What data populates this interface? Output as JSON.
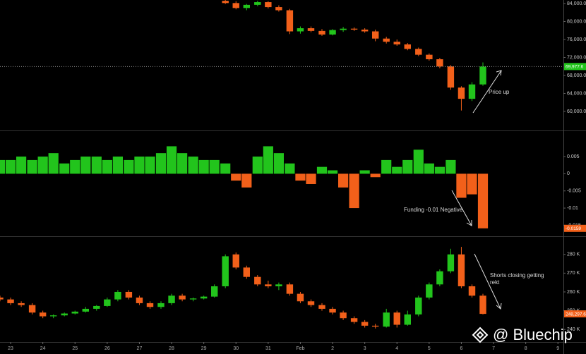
{
  "watermark": "@ Bluechip",
  "chart_data": [
    {
      "type": "candlestick",
      "annotation": "Price up",
      "up_color": "#22c41c",
      "down_color": "#f2601a",
      "last_value_line": true,
      "xlim": [
        -0.33,
        17.17
      ],
      "ylim": [
        55760,
        84780
      ],
      "yticks": [
        {
          "value": 84000,
          "label": "84,000.0"
        },
        {
          "value": 80000,
          "label": "80,000.0"
        },
        {
          "value": 76000,
          "label": "76,000.0"
        },
        {
          "value": 72000,
          "label": "72,000.0"
        },
        {
          "value": 68000,
          "label": "68,000.0"
        },
        {
          "value": 64000,
          "label": "64,000.0"
        },
        {
          "value": 60000,
          "label": "60,000.0"
        }
      ],
      "last_value": {
        "value": 69977.6,
        "label": "69,977.6"
      },
      "x": [
        6.67,
        7,
        7.33,
        7.67,
        8,
        8.33,
        8.67,
        9,
        9.33,
        9.67,
        10,
        10.33,
        10.67,
        11,
        11.33,
        11.67,
        12,
        12.33,
        12.67,
        13,
        13.33,
        13.67,
        14,
        14.33,
        14.67
      ],
      "open": [
        84600,
        84100,
        83000,
        83700,
        84300,
        83200,
        82500,
        77800,
        78500,
        77900,
        77100,
        78100,
        78400,
        78200,
        77800,
        76200,
        75500,
        74900,
        73900,
        72600,
        71600,
        70000,
        65300,
        62800,
        66000
      ],
      "high": [
        85000,
        84500,
        83900,
        84600,
        84500,
        83600,
        82800,
        78900,
        78900,
        78300,
        78300,
        78800,
        78700,
        78500,
        78200,
        76600,
        76000,
        75200,
        74200,
        72900,
        71900,
        70300,
        65600,
        66500,
        70900
      ],
      "low": [
        83900,
        82700,
        82500,
        83400,
        82900,
        82200,
        77200,
        77300,
        77600,
        76800,
        76900,
        77700,
        77900,
        77500,
        75600,
        75100,
        74600,
        73600,
        72300,
        71300,
        69600,
        64800,
        60200,
        62300,
        65700
      ],
      "close": [
        84100,
        83000,
        83700,
        84300,
        83200,
        82500,
        77800,
        78500,
        77900,
        77100,
        78100,
        78400,
        78200,
        77800,
        76200,
        75500,
        74900,
        73900,
        72600,
        71600,
        70000,
        65300,
        62800,
        66000,
        69977.6
      ]
    },
    {
      "type": "bar",
      "annotation": "Funding -0.01 Negative",
      "up_color": "#22c41c",
      "down_color": "#f2601a",
      "xlim": [
        -0.33,
        17.17
      ],
      "ylim": [
        -0.0182,
        0.0124
      ],
      "yticks": [
        0.005,
        0,
        -0.005,
        -0.01,
        -0.015
      ],
      "last_value": {
        "value": -0.0159,
        "label": "-0.0159"
      },
      "x": [
        -0.33,
        0,
        0.33,
        0.67,
        1,
        1.33,
        1.67,
        2,
        2.33,
        2.67,
        3,
        3.33,
        3.67,
        4,
        4.33,
        4.67,
        5,
        5.33,
        5.67,
        6,
        6.33,
        6.67,
        7,
        7.33,
        7.67,
        8,
        8.33,
        8.67,
        9,
        9.33,
        9.67,
        10,
        10.33,
        10.67,
        11,
        11.33,
        11.67,
        12,
        12.33,
        12.67,
        13,
        13.33,
        13.67,
        14,
        14.33,
        14.67
      ],
      "values": [
        0.004,
        0.004,
        0.005,
        0.004,
        0.005,
        0.006,
        0.003,
        0.004,
        0.005,
        0.005,
        0.004,
        0.005,
        0.004,
        0.005,
        0.005,
        0.006,
        0.008,
        0.006,
        0.005,
        0.004,
        0.004,
        0.003,
        -0.002,
        -0.004,
        0.005,
        0.008,
        0.006,
        0.003,
        -0.002,
        -0.003,
        0.002,
        0.001,
        -0.004,
        -0.01,
        0.001,
        -0.001,
        0.004,
        0.002,
        0.004,
        0.007,
        0.003,
        0.002,
        0.004,
        -0.007,
        -0.006,
        -0.0159
      ]
    },
    {
      "type": "candlestick",
      "annotation": "Shorts closing getting rekt",
      "up_color": "#22c41c",
      "down_color": "#f2601a",
      "xlim": [
        -0.33,
        17.17
      ],
      "ylim": [
        233.3,
        289.3
      ],
      "yticks": [
        {
          "value": 280,
          "label": "280 K"
        },
        {
          "value": 270,
          "label": "270 K"
        },
        {
          "value": 260,
          "label": "260 K"
        },
        {
          "value": 250,
          "label": "250 K"
        },
        {
          "value": 240,
          "label": "240 K"
        }
      ],
      "last_value": {
        "value": 248.2976,
        "label": "248,297.6"
      },
      "xticks": [
        {
          "value": 0,
          "label": "23"
        },
        {
          "value": 1,
          "label": "24"
        },
        {
          "value": 2,
          "label": "25"
        },
        {
          "value": 3,
          "label": "26"
        },
        {
          "value": 4,
          "label": "27"
        },
        {
          "value": 5,
          "label": "28"
        },
        {
          "value": 6,
          "label": "29"
        },
        {
          "value": 7,
          "label": "30"
        },
        {
          "value": 8,
          "label": "31"
        },
        {
          "value": 9,
          "label": "Feb"
        },
        {
          "value": 10,
          "label": "2"
        },
        {
          "value": 11,
          "label": "3"
        },
        {
          "value": 12,
          "label": "4"
        },
        {
          "value": 13,
          "label": "5"
        },
        {
          "value": 14,
          "label": "6"
        },
        {
          "value": 15,
          "label": "7"
        },
        {
          "value": 16,
          "label": "8"
        },
        {
          "value": 17,
          "label": "9"
        }
      ],
      "x": [
        -0.33,
        0,
        0.33,
        0.67,
        1,
        1.33,
        1.67,
        2,
        2.33,
        2.67,
        3,
        3.33,
        3.67,
        4,
        4.33,
        4.67,
        5,
        5.33,
        5.67,
        6,
        6.33,
        6.67,
        7,
        7.33,
        7.67,
        8,
        8.33,
        8.67,
        9,
        9.33,
        9.67,
        10,
        10.33,
        10.67,
        11,
        11.33,
        11.67,
        12,
        12.33,
        12.67,
        13,
        13.33,
        13.67,
        14,
        14.33,
        14.67
      ],
      "open": [
        257,
        256,
        254,
        253,
        249,
        247,
        247.5,
        248.5,
        249.5,
        251,
        252.5,
        256,
        260,
        257,
        254,
        252,
        254,
        258,
        256,
        256.5,
        257.5,
        263,
        280,
        273,
        268,
        264,
        263,
        264,
        259,
        255,
        253,
        251,
        249,
        246,
        244,
        242,
        241.5,
        249,
        242.5,
        248,
        257,
        264,
        271,
        280,
        263,
        258
      ],
      "high": [
        258,
        257,
        255,
        254,
        250,
        248,
        249,
        250,
        252,
        253,
        257,
        261,
        261,
        258,
        255,
        255,
        259,
        259,
        257,
        258,
        264,
        280,
        281,
        274,
        269,
        266,
        265,
        265,
        260,
        256,
        254,
        252,
        250,
        247,
        245,
        243,
        251,
        250,
        250,
        258,
        265,
        272,
        283,
        284,
        264,
        259
      ],
      "low": [
        255,
        253,
        252,
        248,
        246,
        246,
        247,
        248,
        249,
        250,
        252,
        255,
        256,
        253,
        251,
        251,
        253,
        255,
        255,
        256,
        257,
        262,
        272,
        267,
        263,
        262,
        261,
        258,
        254,
        252,
        250,
        248,
        245,
        243,
        241,
        240.5,
        241,
        241,
        242,
        247,
        256,
        263,
        270,
        262,
        257,
        248
      ],
      "close": [
        256,
        254,
        253,
        249,
        247,
        247.5,
        248.5,
        249.5,
        251,
        252.5,
        256,
        260,
        257,
        254,
        252,
        254,
        258,
        256,
        256.5,
        257.5,
        263,
        279,
        273,
        268,
        264,
        263,
        264,
        259,
        255,
        253,
        251,
        249,
        246,
        244,
        242,
        241.5,
        249,
        242.5,
        248,
        257,
        264,
        271,
        280,
        263,
        258,
        248.2976
      ]
    }
  ]
}
